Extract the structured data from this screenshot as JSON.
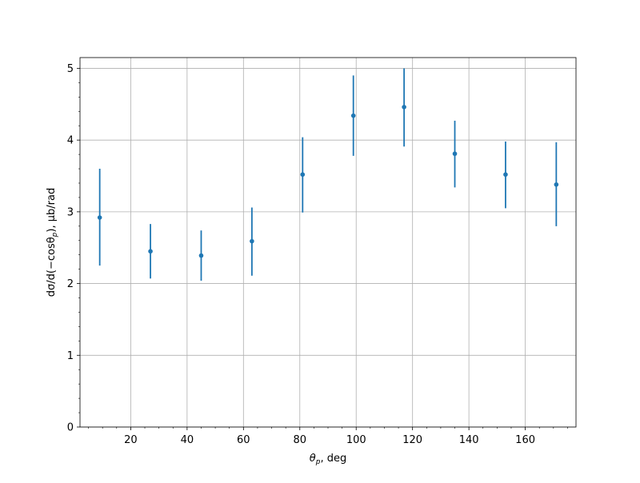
{
  "chart_data": {
    "type": "scatter",
    "title": "",
    "xlabel_symbol": "θ",
    "xlabel_sub": "p",
    "xlabel_rest": ", deg",
    "ylabel_pre": "dσ/d(−cosθ",
    "ylabel_sub": "p",
    "ylabel_post": "), μb/rad",
    "xlim": [
      2,
      178
    ],
    "ylim": [
      0,
      5.15
    ],
    "xticks": [
      20,
      40,
      60,
      80,
      100,
      120,
      140,
      160
    ],
    "yticks": [
      0,
      1,
      2,
      3,
      4,
      5
    ],
    "grid": true,
    "marker_color": "#1f77b4",
    "series": [
      {
        "x": [
          9,
          27,
          45,
          63,
          81,
          99,
          117,
          135,
          153,
          171
        ],
        "y": [
          2.92,
          2.45,
          2.39,
          2.59,
          3.52,
          4.34,
          4.46,
          3.81,
          3.52,
          3.38
        ],
        "yerr_low": [
          2.25,
          2.07,
          2.04,
          2.11,
          2.99,
          3.78,
          3.91,
          3.34,
          3.05,
          2.8
        ],
        "yerr_high": [
          3.6,
          2.83,
          2.74,
          3.06,
          4.04,
          4.9,
          5.0,
          4.27,
          3.98,
          3.97
        ]
      }
    ]
  }
}
